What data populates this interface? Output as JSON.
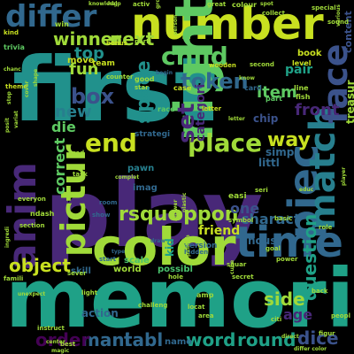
{
  "palette": {
    "background": "#000000",
    "teal": "#277f8e",
    "deep_teal": "#21918c",
    "green": "#5ec962",
    "light_green": "#a0da39",
    "yellow_green": "#c8e020",
    "purple": "#482878",
    "dark_purple": "#440154",
    "blue": "#3b528b",
    "indigo": "#31688e",
    "sea": "#1fa187",
    "mint": "#4ac16d"
  },
  "words": [
    {
      "text": "first",
      "color": "deep_teal"
    },
    {
      "text": "play",
      "color": "purple"
    },
    {
      "text": "memori",
      "color": "sea"
    },
    {
      "text": "number",
      "color": "yellow_green"
    },
    {
      "text": "color",
      "color": "light_green"
    },
    {
      "text": "time",
      "color": "indigo"
    },
    {
      "text": "anim",
      "color": "purple"
    },
    {
      "text": "right",
      "color": "green"
    },
    {
      "text": "piec",
      "color": "indigo"
    },
    {
      "text": "match",
      "color": "teal"
    },
    {
      "text": "face",
      "color": "blue"
    },
    {
      "text": "pictur",
      "color": "light_green"
    },
    {
      "text": "differ",
      "color": "indigo"
    },
    {
      "text": "end",
      "color": "yellow_green"
    },
    {
      "text": "place",
      "color": "light_green"
    },
    {
      "text": "child",
      "color": "green"
    },
    {
      "text": "token",
      "color": "indigo"
    },
    {
      "text": "box",
      "color": "blue"
    },
    {
      "text": "set",
      "color": "purple"
    },
    {
      "text": "space",
      "color": "deep_teal"
    },
    {
      "text": "question",
      "color": "sea"
    },
    {
      "text": "rsquo",
      "color": "light_green"
    },
    {
      "text": "oppon",
      "color": "light_green"
    },
    {
      "text": "way",
      "color": "yellow_green"
    },
    {
      "text": "object",
      "color": "yellow_green"
    },
    {
      "text": "side",
      "color": "light_green"
    },
    {
      "text": "word",
      "color": "sea"
    },
    {
      "text": "round",
      "color": "sea"
    },
    {
      "text": "dice",
      "color": "blue"
    },
    {
      "text": "tabl",
      "color": "indigo"
    },
    {
      "text": "mani",
      "color": "indigo"
    },
    {
      "text": "order",
      "color": "dark_purple"
    },
    {
      "text": "winner",
      "color": "light_green"
    },
    {
      "text": "next",
      "color": "light_green"
    },
    {
      "text": "top",
      "color": "deep_teal"
    },
    {
      "text": "fun",
      "color": "light_green"
    },
    {
      "text": "new",
      "color": "teal"
    },
    {
      "text": "die",
      "color": "green"
    },
    {
      "text": "item",
      "color": "green"
    },
    {
      "text": "front",
      "color": "purple"
    },
    {
      "text": "pair",
      "color": "sea"
    },
    {
      "text": "correct",
      "color": "green"
    },
    {
      "text": "categori",
      "color": "purple"
    },
    {
      "text": "treasur",
      "color": "light_green"
    },
    {
      "text": "charact",
      "color": "indigo"
    },
    {
      "text": "friend",
      "color": "yellow_green"
    },
    {
      "text": "one",
      "color": "blue"
    },
    {
      "text": "age",
      "color": "purple"
    },
    {
      "text": "chip",
      "color": "blue"
    },
    {
      "text": "simpl",
      "color": "indigo"
    },
    {
      "text": "littl",
      "color": "indigo"
    },
    {
      "text": "kid",
      "color": "sea"
    },
    {
      "text": "content",
      "color": "blue"
    },
    {
      "text": "hous",
      "color": "indigo"
    },
    {
      "text": "action",
      "color": "indigo"
    },
    {
      "text": "name",
      "color": "indigo"
    },
    {
      "text": "scale",
      "color": "mint"
    },
    {
      "text": "skill",
      "color": "indigo"
    },
    {
      "text": "world",
      "color": "light_green"
    },
    {
      "text": "possibl",
      "color": "mint"
    },
    {
      "text": "imag",
      "color": "indigo"
    },
    {
      "text": "strategi",
      "color": "indigo"
    },
    {
      "text": "pawn",
      "color": "teal"
    },
    {
      "text": "version",
      "color": "indigo"
    },
    {
      "text": "move",
      "color": "yellow_green"
    },
    {
      "text": "team",
      "color": "yellow_green"
    },
    {
      "text": "book",
      "color": "yellow_green"
    },
    {
      "text": "level",
      "color": "yellow_green"
    },
    {
      "text": "easi",
      "color": "light_green"
    },
    {
      "text": "trivia",
      "color": "green"
    },
    {
      "text": "win",
      "color": "light_green"
    },
    {
      "text": "kind",
      "color": "yellow_green"
    },
    {
      "text": "bonus",
      "color": "yellow_green"
    },
    {
      "text": "counter",
      "color": "light_green"
    },
    {
      "text": "wooden",
      "color": "yellow_green"
    },
    {
      "text": "letter",
      "color": "yellow_green"
    },
    {
      "text": "card",
      "color": "indigo"
    },
    {
      "text": "part",
      "color": "green"
    },
    {
      "text": "race",
      "color": "green"
    },
    {
      "text": "good",
      "color": "light_green"
    },
    {
      "text": "star",
      "color": "light_green"
    },
    {
      "text": "case",
      "color": "yellow_green"
    },
    {
      "text": "theme",
      "color": "yellow_green"
    },
    {
      "text": "second",
      "color": "light_green"
    },
    {
      "text": "line",
      "color": "light_green"
    },
    {
      "text": "fish",
      "color": "light_green"
    },
    {
      "text": "sound",
      "color": "light_green"
    },
    {
      "text": "colour",
      "color": "light_green"
    },
    {
      "text": "special",
      "color": "light_green"
    },
    {
      "text": "collect",
      "color": "light_green"
    },
    {
      "text": "knowledg",
      "color": "light_green"
    },
    {
      "text": "activ",
      "color": "light_green"
    },
    {
      "text": "great",
      "color": "light_green"
    },
    {
      "text": "parti",
      "color": "light_green"
    },
    {
      "text": "room",
      "color": "indigo"
    },
    {
      "text": "show",
      "color": "indigo"
    },
    {
      "text": "start",
      "color": "indigo"
    },
    {
      "text": "hidden",
      "color": "indigo"
    },
    {
      "text": "basic",
      "color": "light_green"
    },
    {
      "text": "symbol",
      "color": "light_green"
    },
    {
      "text": "goal",
      "color": "light_green"
    },
    {
      "text": "power",
      "color": "light_green"
    },
    {
      "text": "seri",
      "color": "light_green"
    },
    {
      "text": "role",
      "color": "light_green"
    },
    {
      "text": "hole",
      "color": "light_green"
    },
    {
      "text": "secret",
      "color": "light_green"
    },
    {
      "text": "light",
      "color": "light_green"
    },
    {
      "text": "challeng",
      "color": "light_green"
    },
    {
      "text": "locat",
      "color": "light_green"
    },
    {
      "text": "area",
      "color": "light_green"
    },
    {
      "text": "back",
      "color": "light_green"
    },
    {
      "text": "citi",
      "color": "light_green"
    },
    {
      "text": "peopl",
      "color": "light_green"
    },
    {
      "text": "figur",
      "color": "light_green"
    },
    {
      "text": "differ color",
      "color": "light_green"
    },
    {
      "text": "instruct",
      "color": "light_green"
    },
    {
      "text": "best",
      "color": "light_green"
    },
    {
      "text": "magic",
      "color": "light_green"
    },
    {
      "text": "famili",
      "color": "light_green"
    },
    {
      "text": "ndash",
      "color": "light_green"
    },
    {
      "text": "everyon",
      "color": "light_green"
    },
    {
      "text": "section",
      "color": "light_green"
    },
    {
      "text": "task",
      "color": "light_green"
    },
    {
      "text": "red",
      "color": "light_green"
    },
    {
      "text": "squar",
      "color": "light_green"
    },
    {
      "text": "amp",
      "color": "light_green"
    },
    {
      "text": "educ",
      "color": "light_green"
    },
    {
      "text": "type",
      "color": "indigo"
    },
    {
      "text": "draw",
      "color": "indigo"
    },
    {
      "text": "begin",
      "color": "indigo"
    },
    {
      "text": "complet",
      "color": "light_green"
    },
    {
      "text": "help",
      "color": "light_green"
    },
    {
      "text": "spot",
      "color": "light_green"
    },
    {
      "text": "various",
      "color": "light_green"
    },
    {
      "text": "plastic",
      "color": "light_green"
    },
    {
      "text": "group",
      "color": "light_green"
    },
    {
      "text": "person",
      "color": "light_green"
    },
    {
      "text": "publish",
      "color": "light_green"
    },
    {
      "text": "answer",
      "color": "light_green"
    },
    {
      "text": "player",
      "color": "light_green"
    },
    {
      "text": "chanc",
      "color": "light_green"
    },
    {
      "text": "variat",
      "color": "light_green"
    },
    {
      "text": "posit",
      "color": "light_green"
    },
    {
      "text": "stop",
      "color": "light_green"
    },
    {
      "text": "ingredi",
      "color": "light_green"
    },
    {
      "text": "shape",
      "color": "light_green"
    },
    {
      "text": "cover",
      "color": "light_green"
    },
    {
      "text": "cube",
      "color": "light_green"
    },
    {
      "text": "sever",
      "color": "light_green"
    },
    {
      "text": "know",
      "color": "light_green"
    },
    {
      "text": "center",
      "color": "light_green"
    },
    {
      "text": "letter",
      "color": "light_green"
    },
    {
      "text": "direct",
      "color": "light_green"
    },
    {
      "text": "unexpect",
      "color": "light_green"
    }
  ]
}
